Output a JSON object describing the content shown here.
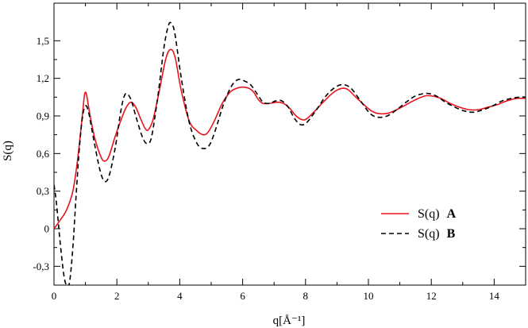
{
  "chart_data": {
    "type": "line",
    "xlabel": "q[Å⁻¹]",
    "ylabel": "S(q)",
    "xlim": [
      0,
      15
    ],
    "ylim": [
      -0.45,
      1.8
    ],
    "grid": false,
    "legend_position": "lower-right",
    "x_ticks": [
      0,
      2,
      4,
      6,
      8,
      10,
      12,
      14
    ],
    "x_tick_labels": [
      "0",
      "2",
      "4",
      "6",
      "8",
      "10",
      "12",
      "14"
    ],
    "y_ticks": [
      -0.3,
      0,
      0.3,
      0.6,
      0.9,
      1.2,
      1.5
    ],
    "y_tick_labels": [
      "-0,3",
      "0",
      "0,3",
      "0,6",
      "0,9",
      "1,2",
      "1,5"
    ],
    "series": [
      {
        "name": "S(q)",
        "tag": "A",
        "color": "#e8141e",
        "dash": "solid",
        "points": [
          [
            0,
            0.0
          ],
          [
            0.2,
            0.07
          ],
          [
            0.4,
            0.15
          ],
          [
            0.6,
            0.3
          ],
          [
            0.75,
            0.55
          ],
          [
            0.9,
            0.9
          ],
          [
            0.96,
            1.05
          ],
          [
            1.0,
            1.09
          ],
          [
            1.05,
            1.05
          ],
          [
            1.15,
            0.9
          ],
          [
            1.3,
            0.72
          ],
          [
            1.5,
            0.57
          ],
          [
            1.62,
            0.54
          ],
          [
            1.75,
            0.58
          ],
          [
            1.95,
            0.74
          ],
          [
            2.15,
            0.88
          ],
          [
            2.3,
            0.97
          ],
          [
            2.45,
            1.01
          ],
          [
            2.6,
            0.97
          ],
          [
            2.75,
            0.88
          ],
          [
            2.9,
            0.8
          ],
          [
            3.0,
            0.79
          ],
          [
            3.15,
            0.87
          ],
          [
            3.35,
            1.1
          ],
          [
            3.55,
            1.35
          ],
          [
            3.7,
            1.43
          ],
          [
            3.85,
            1.37
          ],
          [
            4.05,
            1.1
          ],
          [
            4.3,
            0.86
          ],
          [
            4.55,
            0.78
          ],
          [
            4.75,
            0.75
          ],
          [
            4.9,
            0.77
          ],
          [
            5.1,
            0.86
          ],
          [
            5.35,
            1.0
          ],
          [
            5.6,
            1.09
          ],
          [
            5.8,
            1.12
          ],
          [
            6.0,
            1.13
          ],
          [
            6.2,
            1.12
          ],
          [
            6.35,
            1.09
          ],
          [
            6.5,
            1.03
          ],
          [
            6.65,
            1.0
          ],
          [
            6.85,
            1.0
          ],
          [
            7.1,
            1.01
          ],
          [
            7.3,
            1.0
          ],
          [
            7.5,
            0.96
          ],
          [
            7.7,
            0.9
          ],
          [
            7.9,
            0.87
          ],
          [
            8.05,
            0.88
          ],
          [
            8.3,
            0.94
          ],
          [
            8.6,
            1.02
          ],
          [
            8.9,
            1.09
          ],
          [
            9.15,
            1.12
          ],
          [
            9.35,
            1.11
          ],
          [
            9.6,
            1.05
          ],
          [
            9.9,
            0.98
          ],
          [
            10.1,
            0.94
          ],
          [
            10.3,
            0.92
          ],
          [
            10.6,
            0.92
          ],
          [
            10.9,
            0.95
          ],
          [
            11.2,
            0.99
          ],
          [
            11.5,
            1.03
          ],
          [
            11.8,
            1.06
          ],
          [
            12.0,
            1.06
          ],
          [
            12.3,
            1.04
          ],
          [
            12.6,
            1.0
          ],
          [
            12.9,
            0.97
          ],
          [
            13.2,
            0.95
          ],
          [
            13.5,
            0.95
          ],
          [
            13.8,
            0.97
          ],
          [
            14.1,
            0.99
          ],
          [
            14.4,
            1.02
          ],
          [
            14.7,
            1.04
          ],
          [
            15.0,
            1.04
          ]
        ]
      },
      {
        "name": "S(q)",
        "tag": "B",
        "color": "#000000",
        "dash": "dashed",
        "points": [
          [
            0,
            0.35
          ],
          [
            0.08,
            0.2
          ],
          [
            0.2,
            -0.12
          ],
          [
            0.32,
            -0.38
          ],
          [
            0.42,
            -0.46
          ],
          [
            0.5,
            -0.42
          ],
          [
            0.6,
            -0.15
          ],
          [
            0.7,
            0.25
          ],
          [
            0.8,
            0.62
          ],
          [
            0.9,
            0.88
          ],
          [
            1.0,
            0.98
          ],
          [
            1.1,
            0.93
          ],
          [
            1.25,
            0.73
          ],
          [
            1.45,
            0.48
          ],
          [
            1.6,
            0.38
          ],
          [
            1.75,
            0.42
          ],
          [
            1.95,
            0.65
          ],
          [
            2.1,
            0.9
          ],
          [
            2.2,
            1.03
          ],
          [
            2.3,
            1.08
          ],
          [
            2.45,
            1.03
          ],
          [
            2.6,
            0.9
          ],
          [
            2.8,
            0.74
          ],
          [
            2.95,
            0.68
          ],
          [
            3.1,
            0.73
          ],
          [
            3.3,
            1.05
          ],
          [
            3.5,
            1.45
          ],
          [
            3.65,
            1.63
          ],
          [
            3.75,
            1.63
          ],
          [
            3.85,
            1.55
          ],
          [
            4.05,
            1.2
          ],
          [
            4.3,
            0.85
          ],
          [
            4.55,
            0.68
          ],
          [
            4.75,
            0.64
          ],
          [
            4.95,
            0.67
          ],
          [
            5.15,
            0.8
          ],
          [
            5.4,
            1.0
          ],
          [
            5.65,
            1.14
          ],
          [
            5.85,
            1.19
          ],
          [
            6.05,
            1.18
          ],
          [
            6.25,
            1.15
          ],
          [
            6.45,
            1.08
          ],
          [
            6.65,
            1.01
          ],
          [
            6.85,
            1.0
          ],
          [
            7.05,
            1.02
          ],
          [
            7.25,
            1.02
          ],
          [
            7.45,
            0.97
          ],
          [
            7.65,
            0.88
          ],
          [
            7.85,
            0.83
          ],
          [
            8.05,
            0.85
          ],
          [
            8.35,
            0.95
          ],
          [
            8.65,
            1.06
          ],
          [
            8.95,
            1.13
          ],
          [
            9.2,
            1.15
          ],
          [
            9.45,
            1.12
          ],
          [
            9.75,
            1.02
          ],
          [
            10.05,
            0.92
          ],
          [
            10.3,
            0.89
          ],
          [
            10.6,
            0.9
          ],
          [
            10.9,
            0.95
          ],
          [
            11.2,
            1.01
          ],
          [
            11.5,
            1.06
          ],
          [
            11.85,
            1.08
          ],
          [
            12.15,
            1.06
          ],
          [
            12.45,
            1.01
          ],
          [
            12.75,
            0.97
          ],
          [
            13.05,
            0.94
          ],
          [
            13.35,
            0.93
          ],
          [
            13.65,
            0.95
          ],
          [
            13.95,
            0.98
          ],
          [
            14.25,
            1.02
          ],
          [
            14.55,
            1.04
          ],
          [
            14.8,
            1.05
          ],
          [
            15.0,
            1.05
          ]
        ]
      }
    ]
  }
}
